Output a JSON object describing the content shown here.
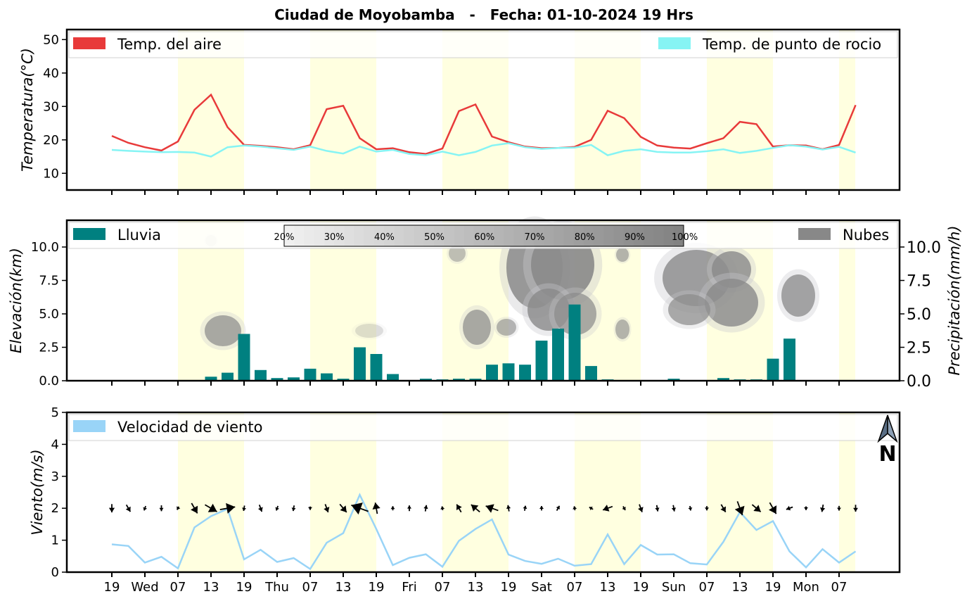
{
  "title": "Ciudad de Moyobamba   -   Fecha: 01-10-2024 19 Hrs",
  "x_tick_labels": [
    "19",
    "Wed",
    "07",
    "13",
    "19",
    "Thu",
    "07",
    "13",
    "19",
    "Fri",
    "07",
    "13",
    "19",
    "Sat",
    "07",
    "13",
    "19",
    "Sun",
    "07",
    "13",
    "19",
    "Mon",
    "07"
  ],
  "colors": {
    "air_temp": "#e83a3a",
    "dew_point": "#86f4f4",
    "rain": "#008080",
    "clouds": "#888888",
    "wind": "#99d4f7",
    "daylight": "#ffffe0"
  },
  "north_arrow": {
    "label": "N",
    "icon": "north-arrow-icon"
  },
  "chart_data": [
    {
      "type": "line",
      "panel": "temperature",
      "ylabel": "Temperatura(°C)",
      "ylim": [
        5,
        53
      ],
      "yticks": [
        10,
        20,
        30,
        40,
        50
      ],
      "legend_placement": "top",
      "series": [
        {
          "name": "Temp. del aire",
          "color": "#e83a3a",
          "values": [
            21.2,
            19.1,
            17.8,
            16.8,
            19.5,
            29.0,
            33.5,
            23.8,
            18.5,
            18.2,
            17.8,
            17.2,
            18.4,
            29.2,
            30.2,
            20.5,
            17.2,
            17.5,
            16.3,
            15.8,
            17.4,
            28.6,
            30.6,
            21.0,
            19.3,
            18.0,
            17.5,
            17.6,
            17.9,
            20.0,
            28.7,
            26.5,
            20.9,
            18.3,
            17.7,
            17.4,
            19.0,
            20.5,
            25.4,
            24.7,
            18.0,
            18.4,
            18.3,
            17.2,
            18.5,
            30.4
          ]
        },
        {
          "name": "Temp. de punto de rocio",
          "color": "#86f4f4",
          "values": [
            17.0,
            16.7,
            16.5,
            16.3,
            16.4,
            16.2,
            15.0,
            17.8,
            18.3,
            18.0,
            17.5,
            17.0,
            18.0,
            16.7,
            15.9,
            18.0,
            16.5,
            17.0,
            15.8,
            15.4,
            16.5,
            15.4,
            16.4,
            18.3,
            19.0,
            17.8,
            17.3,
            17.6,
            17.7,
            18.5,
            15.4,
            16.7,
            17.2,
            16.4,
            16.2,
            16.2,
            16.6,
            17.2,
            16.1,
            16.7,
            17.6,
            18.4,
            18.0,
            17.1,
            17.9,
            16.2
          ]
        }
      ]
    },
    {
      "type": "bar",
      "panel": "rain_clouds",
      "ylabel": "Elevación(km)",
      "ylabel_right": "Precipitación(mm/h)",
      "ylim": [
        0,
        12
      ],
      "yticks": [
        "0.0",
        "2.5",
        "5.0",
        "7.5",
        "10.0"
      ],
      "legend_placement": "top",
      "series": [
        {
          "name": "Lluvia",
          "color": "#008080",
          "values": [
            0,
            0,
            0,
            0,
            0,
            0.05,
            0.3,
            0.6,
            3.5,
            0.8,
            0.2,
            0.25,
            0.9,
            0.55,
            0.15,
            2.5,
            2.0,
            0.5,
            0.05,
            0.15,
            0.1,
            0.15,
            0.15,
            1.2,
            1.3,
            1.2,
            3.0,
            3.9,
            5.7,
            1.1,
            0.1,
            0.05,
            0.05,
            0.05,
            0.15,
            0.05,
            0.05,
            0.2,
            0.1,
            0.1,
            1.65,
            3.15,
            0,
            0,
            0,
            0
          ]
        },
        {
          "name": "Nubes",
          "color": "#888888"
        }
      ],
      "cloud_colorbar": [
        "20%",
        "30%",
        "40%",
        "50%",
        "60%",
        "70%",
        "80%",
        "90%",
        "100%"
      ]
    },
    {
      "type": "line",
      "panel": "wind",
      "ylabel": "Viento(m/s)",
      "ylim": [
        0,
        5
      ],
      "yticks": [
        0,
        1,
        2,
        3,
        4,
        5
      ],
      "legend_placement": "top-left",
      "series": [
        {
          "name": "Velocidad de viento",
          "color": "#99d4f7",
          "values": [
            0.87,
            0.82,
            0.3,
            0.48,
            0.12,
            1.4,
            1.75,
            1.98,
            0.4,
            0.7,
            0.32,
            0.44,
            0.1,
            0.92,
            1.22,
            2.42,
            1.35,
            0.22,
            0.45,
            0.56,
            0.17,
            0.98,
            1.35,
            1.65,
            0.55,
            0.35,
            0.26,
            0.42,
            0.2,
            0.25,
            1.18,
            0.25,
            0.85,
            0.55,
            0.56,
            0.28,
            0.24,
            0.95,
            1.88,
            1.32,
            1.6,
            0.65,
            0.15,
            0.72,
            0.3,
            0.65
          ]
        }
      ],
      "wind_direction_deg": [
        270,
        300,
        250,
        270,
        240,
        300,
        330,
        10,
        260,
        290,
        250,
        260,
        270,
        290,
        310,
        160,
        100,
        90,
        90,
        80,
        100,
        120,
        140,
        160,
        100,
        80,
        90,
        60,
        100,
        150,
        200,
        300,
        290,
        280,
        280,
        280,
        270,
        300,
        290,
        320,
        300,
        200,
        270,
        260,
        270,
        270
      ]
    }
  ]
}
